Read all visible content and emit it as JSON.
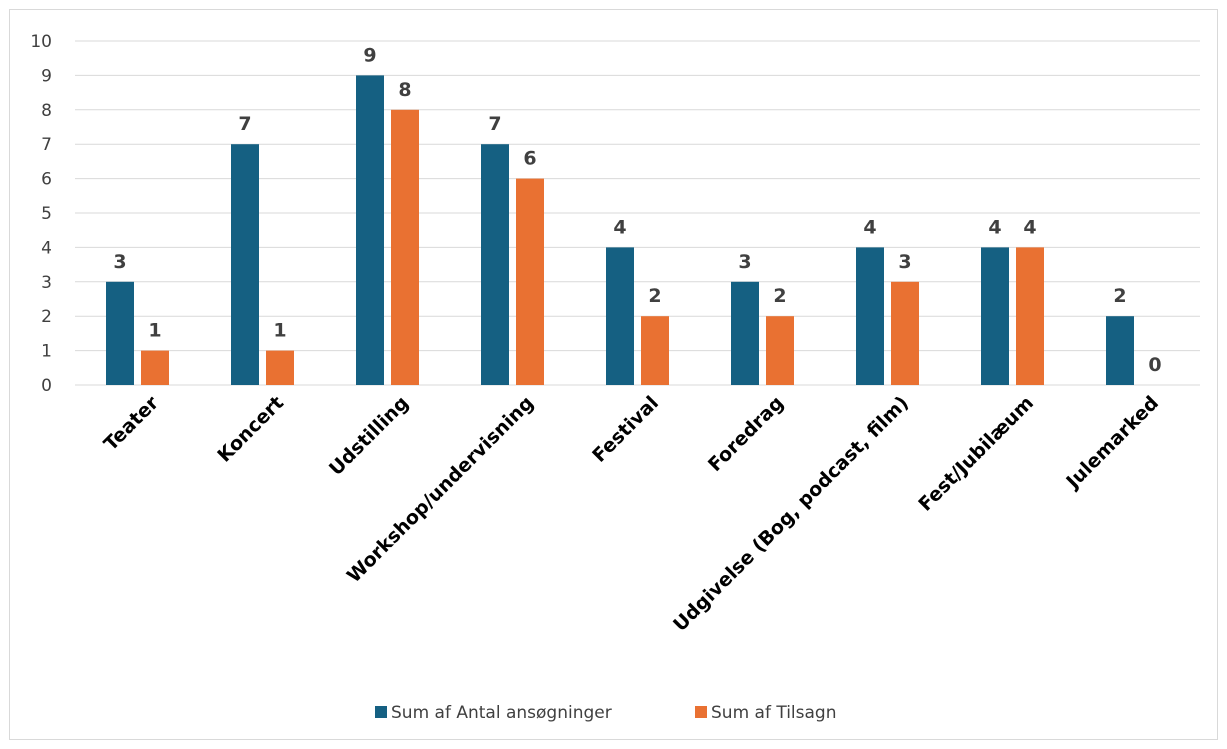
{
  "chart_data": {
    "type": "bar",
    "categories": [
      "Teater",
      "Koncert",
      "Udstilling",
      "Workshop/undervisning",
      "Festival",
      "Foredrag",
      "Udgivelse (Bog, podcast, film)",
      "Fest/Jubilæum",
      "Julemarked"
    ],
    "series": [
      {
        "name": "Sum af Antal ansøgninger",
        "color": "#156082",
        "values": [
          3,
          7,
          9,
          7,
          4,
          3,
          4,
          4,
          2
        ]
      },
      {
        "name": "Sum af Tilsagn",
        "color": "#e97132",
        "values": [
          1,
          1,
          8,
          6,
          2,
          2,
          3,
          4,
          0
        ]
      }
    ],
    "title": "",
    "xlabel": "",
    "ylabel": "",
    "ylim": [
      0,
      10
    ],
    "yticks": [
      "0",
      "1",
      "2",
      "3",
      "4",
      "5",
      "6",
      "7",
      "8",
      "9",
      "10"
    ],
    "grid": true,
    "legend": "bottom"
  }
}
